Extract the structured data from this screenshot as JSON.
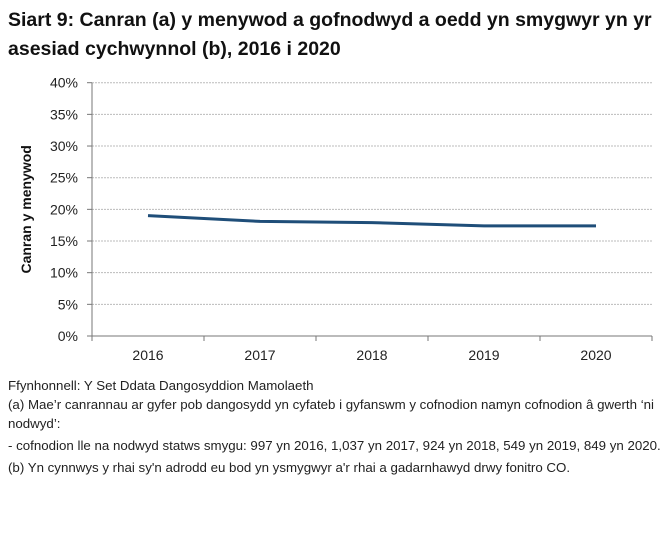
{
  "title": "Siart 9: Canran (a) y menywod a gofnodwyd a oedd yn smygwyr yn yr asesiad cychwynnol (b), 2016 i 2020",
  "chart_data": {
    "type": "line",
    "categories": [
      "2016",
      "2017",
      "2018",
      "2019",
      "2020"
    ],
    "values": [
      19.0,
      18.1,
      17.9,
      17.4,
      17.4
    ],
    "ylabel": "Canran y menywod",
    "xlabel": "",
    "ylim": [
      0,
      40
    ],
    "yticks": [
      "0%",
      "5%",
      "10%",
      "15%",
      "20%",
      "25%",
      "30%",
      "35%",
      "40%"
    ],
    "grid": true,
    "line_color": "#1f4e79"
  },
  "notes": {
    "source": "Ffynhonnell: Y Set Ddata Dangosyddion Mamolaeth",
    "a": "(a) Mae’r canrannau ar gyfer pob dangosydd yn cyfateb i gyfanswm y cofnodion namyn cofnodion â gwerth ‘ni nodwyd’:",
    "a_detail": "- cofnodion lle na nodwyd statws smygu: 997 yn 2016, 1,037 yn 2017, 924 yn 2018, 549 yn 2019, 849 yn 2020.",
    "b": "(b) Yn cynnwys y rhai sy'n adrodd eu bod yn ysmygwyr a'r rhai a gadarnhawyd drwy fonitro CO."
  }
}
